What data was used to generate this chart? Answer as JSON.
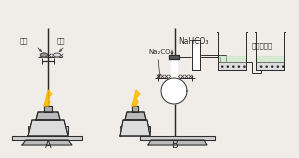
{
  "bg_color": "#f0ede8",
  "title_A": "A",
  "title_B": "B",
  "label_red_phosphorus": "红磷",
  "label_white_phosphorus": "白磷",
  "label_NaHCO3": "NaHCO₃",
  "label_Na2CO3": "Na₂CO₃",
  "label_limewater": "澄清石灰水",
  "line_color": "#2a2a2a",
  "line_width": 0.7
}
